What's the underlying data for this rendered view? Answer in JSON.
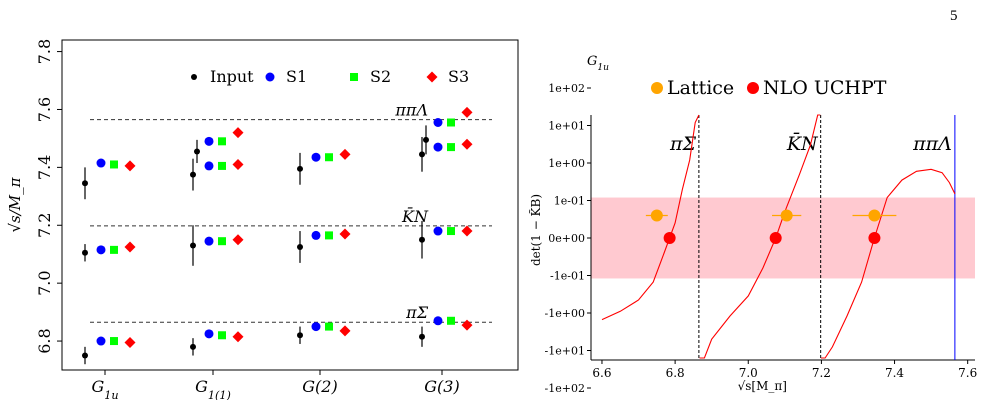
{
  "page_number": "5",
  "chart_data": [
    {
      "type": "scatter",
      "panel": "left",
      "title": "",
      "xlabel": "",
      "ylabel": "√s/M_π",
      "ylim": [
        6.7,
        7.84
      ],
      "yticks": [
        6.8,
        7.0,
        7.2,
        7.4,
        7.6,
        7.8
      ],
      "categories": [
        "G_1u",
        "G_1(1)",
        "G(2)",
        "G(3)"
      ],
      "category_labels": [
        "G1u",
        "G1(1)",
        "G(2)",
        "G(3)"
      ],
      "legend_position": "top-right",
      "reference_lines": [
        {
          "label": "ππΛ",
          "y": 7.565
        },
        {
          "label": "K̄N",
          "y": 7.198
        },
        {
          "label": "πΣ",
          "y": 6.865
        }
      ],
      "series": [
        {
          "name": "Input",
          "color": "#000000",
          "marker": "circle-small",
          "points": [
            {
              "cat": 0,
              "y": 6.75,
              "err": 0.03
            },
            {
              "cat": 0,
              "y": 7.105,
              "err": 0.03
            },
            {
              "cat": 0,
              "y": 7.345,
              "err": 0.055
            },
            {
              "cat": 1,
              "y": 6.78,
              "err": 0.03
            },
            {
              "cat": 1,
              "y": 7.13,
              "err": 0.07
            },
            {
              "cat": 1,
              "y": 7.375,
              "err": 0.055
            },
            {
              "cat": 1,
              "y": 7.455,
              "err": 0.04
            },
            {
              "cat": 2,
              "y": 6.82,
              "err": 0.03
            },
            {
              "cat": 2,
              "y": 7.125,
              "err": 0.055
            },
            {
              "cat": 2,
              "y": 7.395,
              "err": 0.055
            },
            {
              "cat": 3,
              "y": 6.815,
              "err": 0.035
            },
            {
              "cat": 3,
              "y": 7.15,
              "err": 0.065
            },
            {
              "cat": 3,
              "y": 7.445,
              "err": 0.06
            },
            {
              "cat": 3,
              "y": 7.495,
              "err": 0.05
            }
          ]
        },
        {
          "name": "S1",
          "color": "#0000ff",
          "marker": "circle",
          "points": [
            {
              "cat": 0,
              "y": 6.8
            },
            {
              "cat": 0,
              "y": 7.115
            },
            {
              "cat": 0,
              "y": 7.415
            },
            {
              "cat": 1,
              "y": 6.825
            },
            {
              "cat": 1,
              "y": 7.145
            },
            {
              "cat": 1,
              "y": 7.405
            },
            {
              "cat": 1,
              "y": 7.49
            },
            {
              "cat": 2,
              "y": 6.85
            },
            {
              "cat": 2,
              "y": 7.165
            },
            {
              "cat": 2,
              "y": 7.435
            },
            {
              "cat": 3,
              "y": 6.87
            },
            {
              "cat": 3,
              "y": 7.18
            },
            {
              "cat": 3,
              "y": 7.47
            },
            {
              "cat": 3,
              "y": 7.555
            }
          ]
        },
        {
          "name": "S2",
          "color": "#00ff00",
          "marker": "square",
          "points": [
            {
              "cat": 0,
              "y": 6.8
            },
            {
              "cat": 0,
              "y": 7.115
            },
            {
              "cat": 0,
              "y": 7.41
            },
            {
              "cat": 1,
              "y": 6.82
            },
            {
              "cat": 1,
              "y": 7.145
            },
            {
              "cat": 1,
              "y": 7.405
            },
            {
              "cat": 1,
              "y": 7.49
            },
            {
              "cat": 2,
              "y": 6.85
            },
            {
              "cat": 2,
              "y": 7.165
            },
            {
              "cat": 2,
              "y": 7.435
            },
            {
              "cat": 3,
              "y": 6.87
            },
            {
              "cat": 3,
              "y": 7.18
            },
            {
              "cat": 3,
              "y": 7.47
            },
            {
              "cat": 3,
              "y": 7.555
            }
          ]
        },
        {
          "name": "S3",
          "color": "#ff0000",
          "marker": "diamond",
          "points": [
            {
              "cat": 0,
              "y": 6.795
            },
            {
              "cat": 0,
              "y": 7.125
            },
            {
              "cat": 0,
              "y": 7.405
            },
            {
              "cat": 1,
              "y": 6.815
            },
            {
              "cat": 1,
              "y": 7.15
            },
            {
              "cat": 1,
              "y": 7.41
            },
            {
              "cat": 1,
              "y": 7.52
            },
            {
              "cat": 2,
              "y": 6.835
            },
            {
              "cat": 2,
              "y": 7.17
            },
            {
              "cat": 2,
              "y": 7.445
            },
            {
              "cat": 3,
              "y": 6.855
            },
            {
              "cat": 3,
              "y": 7.18
            },
            {
              "cat": 3,
              "y": 7.48
            },
            {
              "cat": 3,
              "y": 7.59
            }
          ]
        }
      ]
    },
    {
      "type": "line",
      "panel": "right",
      "title": "G1u",
      "xlabel": "√s[M_π]",
      "ylabel": "det(1 − K̃B)",
      "xlim": [
        6.57,
        7.62
      ],
      "xticks": [
        6.6,
        6.8,
        7.0,
        7.2,
        7.4,
        7.6
      ],
      "y_scale": "symlog",
      "y_tick_labels": [
        "1e+02",
        "1e+01",
        "1e+00",
        "1e-01",
        "0e+00",
        "-1e-01",
        "-1e+00",
        "-1e+01",
        "-1e+02"
      ],
      "legend_position": "top",
      "legend": [
        {
          "name": "Lattice",
          "color": "#ffa500"
        },
        {
          "name": "NLO UCHPT",
          "color": "#ff0000"
        }
      ],
      "band": {
        "color": "#ffc0c8",
        "y_range": [
          -0.12,
          0.12
        ]
      },
      "thresholds": [
        {
          "label": "πΣ",
          "x": 6.865,
          "style": "dashed",
          "color": "#000000"
        },
        {
          "label": "K̄N",
          "x": 7.198,
          "style": "dashed",
          "color": "#000000"
        },
        {
          "label": "ππΛ",
          "x": 7.565,
          "style": "solid",
          "color": "#0000ff"
        }
      ],
      "lattice_points": [
        {
          "x": 6.75,
          "xerr": 0.03,
          "y": 0.06
        },
        {
          "x": 7.105,
          "xerr": 0.04,
          "y": 0.06
        },
        {
          "x": 7.345,
          "xerr": 0.06,
          "y": 0.06
        }
      ],
      "uchpt_points": [
        {
          "x": 6.785,
          "y": 0.0
        },
        {
          "x": 7.075,
          "y": 0.0
        },
        {
          "x": 7.345,
          "y": 0.0
        }
      ],
      "curve_segments": [
        [
          [
            6.6,
            -1.5
          ],
          [
            6.65,
            -0.9
          ],
          [
            6.7,
            -0.45
          ],
          [
            6.74,
            -0.15
          ],
          [
            6.77,
            -0.04
          ],
          [
            6.785,
            0.0
          ],
          [
            6.8,
            0.04
          ],
          [
            6.82,
            0.2
          ],
          [
            6.84,
            1.2
          ],
          [
            6.855,
            12
          ],
          [
            6.865,
            150
          ]
        ],
        [
          [
            6.867,
            -200
          ],
          [
            6.88,
            -20
          ],
          [
            6.9,
            -5
          ],
          [
            6.95,
            -1.2
          ],
          [
            7.0,
            -0.35
          ],
          [
            7.04,
            -0.08
          ],
          [
            7.075,
            0.0
          ],
          [
            7.1,
            0.07
          ],
          [
            7.14,
            0.5
          ],
          [
            7.17,
            3
          ],
          [
            7.19,
            30
          ],
          [
            7.197,
            120
          ]
        ],
        [
          [
            7.199,
            -200
          ],
          [
            7.21,
            -40
          ],
          [
            7.23,
            -8
          ],
          [
            7.27,
            -1.2
          ],
          [
            7.31,
            -0.15
          ],
          [
            7.345,
            0.0
          ],
          [
            7.38,
            0.12
          ],
          [
            7.42,
            0.35
          ],
          [
            7.46,
            0.6
          ],
          [
            7.5,
            0.68
          ],
          [
            7.53,
            0.55
          ],
          [
            7.55,
            0.3
          ],
          [
            7.565,
            0.15
          ]
        ]
      ]
    }
  ]
}
